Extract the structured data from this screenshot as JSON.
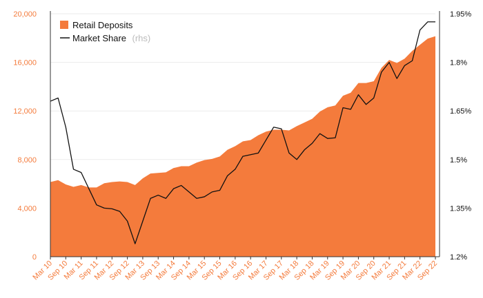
{
  "colors": {
    "area": "#f47b3c",
    "line": "#111111",
    "grid": "#ebebeb",
    "axis": "#333333"
  },
  "chart_data": {
    "type": "area",
    "legend_position": "top-left",
    "x_tick_labels": [
      "Mar 10",
      "Sep 10",
      "Mar 11",
      "Sep 11",
      "Mar 12",
      "Sep 12",
      "Mar 13",
      "Sep 13",
      "Mar 14",
      "Sep 14",
      "Mar 15",
      "Sep 15",
      "Mar 16",
      "Sep 16",
      "Mar 17",
      "Sep 17",
      "Mar 18",
      "Sep 18",
      "Mar 19",
      "Sep 19",
      "Mar 20",
      "Sep 20",
      "Mar 21",
      "Sep 21",
      "Mar 22",
      "Sep 22"
    ],
    "y_left": {
      "ticks": [
        0,
        4000,
        8000,
        12000,
        16000,
        20000
      ],
      "tick_labels": [
        "0",
        "4,000",
        "8,000",
        "12,000",
        "16,000",
        "20,000"
      ],
      "range": [
        0,
        20000
      ]
    },
    "y_right": {
      "ticks": [
        1.2,
        1.35,
        1.5,
        1.65,
        1.8,
        1.95
      ],
      "tick_labels": [
        "1.2%",
        "1.35%",
        "1.5%",
        "1.65%",
        "1.8%",
        "1.95%"
      ],
      "range": [
        1.2,
        1.95
      ]
    },
    "series": [
      {
        "name": "Retail Deposits",
        "kind": "area",
        "axis": "left",
        "values": [
          6150,
          6300,
          5950,
          5750,
          5900,
          5700,
          5700,
          6050,
          6150,
          6200,
          6150,
          5900,
          6450,
          6850,
          6900,
          6950,
          7300,
          7450,
          7450,
          7750,
          7950,
          8050,
          8250,
          8800,
          9100,
          9500,
          9600,
          10000,
          10300,
          10450,
          10450,
          10400,
          10750,
          11050,
          11350,
          11950,
          12300,
          12450,
          13250,
          13500,
          14300,
          14300,
          14450,
          15550,
          16200,
          15950,
          16300,
          16950,
          17450,
          17950,
          18150
        ]
      },
      {
        "name": "Market Share",
        "name_suffix": "(rhs)",
        "kind": "line",
        "axis": "right",
        "values": [
          1.68,
          1.69,
          1.6,
          1.47,
          1.46,
          1.41,
          1.36,
          1.35,
          1.348,
          1.34,
          1.31,
          1.24,
          1.31,
          1.38,
          1.39,
          1.38,
          1.41,
          1.42,
          1.4,
          1.38,
          1.385,
          1.4,
          1.405,
          1.45,
          1.47,
          1.51,
          1.515,
          1.52,
          1.56,
          1.6,
          1.595,
          1.52,
          1.5,
          1.53,
          1.55,
          1.58,
          1.565,
          1.567,
          1.66,
          1.655,
          1.7,
          1.67,
          1.69,
          1.77,
          1.8,
          1.75,
          1.79,
          1.805,
          1.9,
          1.925,
          1.925
        ]
      }
    ]
  }
}
